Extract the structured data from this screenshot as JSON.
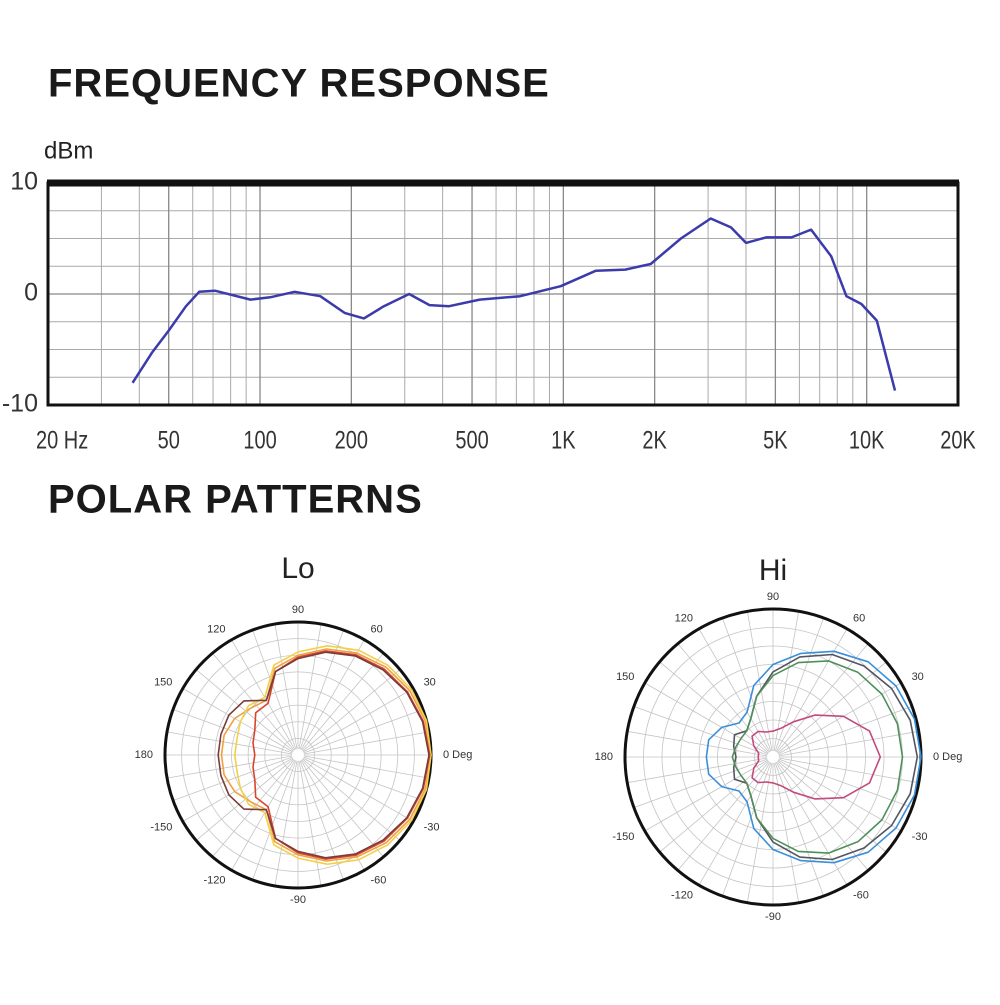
{
  "section_title": "POLAR PATTERNS",
  "chart_data": [
    {
      "type": "line",
      "title": "FREQUENCY RESPONSE",
      "y_label": "dBm",
      "x_scale": "log",
      "xlim": [
        20,
        20000
      ],
      "ylim": [
        -10,
        10
      ],
      "xticks": [
        {
          "value": 20,
          "label": "20 Hz"
        },
        50,
        100,
        200,
        500,
        {
          "value": 1000,
          "label": "1K"
        },
        {
          "value": 2000,
          "label": "2K"
        },
        {
          "value": 5000,
          "label": "5K"
        },
        {
          "value": 10000,
          "label": "10K"
        },
        {
          "value": 20000,
          "label": "20K"
        }
      ],
      "yticks": [
        -10,
        0,
        10
      ],
      "x_grid": [
        30,
        40,
        60,
        70,
        80,
        90,
        300,
        400,
        600,
        700,
        800,
        900,
        3000,
        4000,
        6000,
        7000,
        8000,
        9000
      ],
      "y_grid": [
        -7.5,
        -5,
        -2.5,
        2.5,
        5,
        7.5
      ],
      "x": [
        38,
        44,
        50,
        57,
        63,
        71,
        93,
        108,
        130,
        158,
        190,
        220,
        256,
        310,
        362,
        420,
        530,
        720,
        980,
        1280,
        1600,
        1940,
        2440,
        3060,
        3570,
        4000,
        4660,
        5650,
        6560,
        7640,
        8570,
        9610,
        10800,
        12400
      ],
      "series": [
        {
          "color": "#3b3bab",
          "values": [
            -8.0,
            -5.3,
            -3.3,
            -1.1,
            0.2,
            0.3,
            -0.5,
            -0.3,
            0.2,
            -0.2,
            -1.7,
            -2.2,
            -1.1,
            0,
            -1.0,
            -1.1,
            -0.5,
            -0.2,
            0.7,
            2.1,
            2.2,
            2.7,
            5.0,
            6.8,
            6.0,
            4.6,
            5.1,
            5.1,
            5.8,
            3.4,
            -0.2,
            -0.9,
            -2.4,
            -8.7
          ]
        }
      ]
    },
    {
      "type": "polar",
      "title": "Lo",
      "rlim": [
        -20,
        0
      ],
      "r_grid": [
        -17.5,
        -15,
        -12.5,
        -10,
        -7.5,
        -5,
        -2.5
      ],
      "theta_grid_step": 10,
      "theta_ticks": [
        {
          "value": 0,
          "label": "0 Deg"
        },
        30,
        60,
        90,
        120,
        150,
        180,
        -150,
        -120,
        -90,
        -60,
        -30
      ],
      "theta": [
        0,
        15,
        30,
        45,
        60,
        75,
        90,
        105,
        120,
        135,
        150,
        165,
        180,
        195,
        210,
        225,
        240,
        255,
        270,
        285,
        300,
        315,
        330,
        345
      ],
      "series": [
        {
          "color": "#f0a040",
          "values": [
            0,
            -0.2,
            -0.6,
            -1.3,
            -2.3,
            -3.5,
            -5,
            -6.5,
            -10.5,
            -10,
            -9,
            -8.5,
            -8.5,
            -8.5,
            -9,
            -10,
            -10.5,
            -6.5,
            -5,
            -3.5,
            -2.3,
            -1.3,
            -0.6,
            -0.2
          ]
        },
        {
          "color": "#f2d04a",
          "values": [
            0,
            0,
            -0.3,
            -0.9,
            -1.8,
            -3,
            -4.5,
            -6,
            -10,
            -9.5,
            -10,
            -10.5,
            -10.5,
            -10.5,
            -10,
            -9.5,
            -10,
            -6,
            -4.5,
            -3,
            -1.8,
            -0.9,
            -0.3,
            0
          ]
        },
        {
          "color": "#d8452c",
          "values": [
            -0.2,
            -0.5,
            -1,
            -1.7,
            -2.6,
            -3.8,
            -5.3,
            -7,
            -11,
            -11,
            -12.5,
            -13,
            -13.5,
            -13,
            -12.5,
            -11,
            -11,
            -7,
            -5.3,
            -3.8,
            -2.6,
            -1.7,
            -1,
            -0.5
          ]
        },
        {
          "color": "#7a3b3b",
          "values": [
            -0.3,
            -0.6,
            -1.1,
            -1.9,
            -2.8,
            -4,
            -5.5,
            -7,
            -10.5,
            -8.5,
            -8,
            -8,
            -8,
            -8,
            -8,
            -8.5,
            -10.5,
            -7,
            -5.5,
            -4,
            -2.8,
            -1.9,
            -1.1,
            -0.6
          ]
        }
      ]
    },
    {
      "type": "polar",
      "title": "Hi",
      "rlim": [
        -20,
        0
      ],
      "r_grid": [
        -17.5,
        -15,
        -12.5,
        -10,
        -7.5,
        -5,
        -2.5
      ],
      "theta_grid_step": 10,
      "theta_ticks": [
        {
          "value": 0,
          "label": "0 Deg"
        },
        30,
        60,
        90,
        120,
        150,
        180,
        -150,
        -120,
        -90,
        -60,
        -30
      ],
      "theta": [
        0,
        15,
        30,
        45,
        60,
        75,
        90,
        105,
        120,
        135,
        150,
        165,
        180,
        195,
        210,
        225,
        240,
        255,
        270,
        285,
        300,
        315,
        330,
        345
      ],
      "series": [
        {
          "color": "#3a8fd8",
          "values": [
            0,
            -0.2,
            -0.8,
            -1.8,
            -3.5,
            -5.5,
            -7.5,
            -10,
            -13,
            -13.5,
            -12,
            -11,
            -11,
            -11,
            -12,
            -13.5,
            -13,
            -10,
            -7.5,
            -5.5,
            -3.5,
            -1.8,
            -0.8,
            -0.2
          ]
        },
        {
          "color": "#555560",
          "values": [
            -0.5,
            -0.8,
            -1.5,
            -2.6,
            -4,
            -6,
            -8.5,
            -11.5,
            -14,
            -15,
            -14,
            -14.5,
            -15,
            -14.5,
            -14,
            -15,
            -14,
            -11.5,
            -8.5,
            -6,
            -4,
            -2.6,
            -1.5,
            -0.8
          ]
        },
        {
          "color": "#4f8f5a",
          "values": [
            -2.5,
            -2.6,
            -3,
            -3.8,
            -5,
            -6.8,
            -9,
            -11.5,
            -14,
            -15,
            -15,
            -14.8,
            -14.5,
            -14.8,
            -15,
            -15,
            -14,
            -11.5,
            -9,
            -6.8,
            -5,
            -3.8,
            -3,
            -2.6
          ]
        },
        {
          "color": "#c24a7e",
          "values": [
            -5.5,
            -6.5,
            -9,
            -12,
            -14.5,
            -16,
            -16.5,
            -16.5,
            -16,
            -16,
            -17,
            -18,
            -18,
            -18,
            -17,
            -16,
            -16,
            -16.5,
            -16.5,
            -16,
            -14.5,
            -12,
            -9,
            -6.5
          ]
        }
      ]
    }
  ]
}
